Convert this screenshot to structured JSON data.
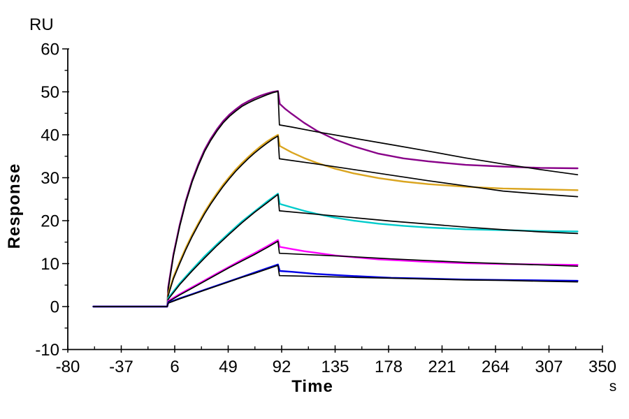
{
  "chart_data": {
    "type": "line",
    "description": "Surface plasmon resonance (SPR) sensorgram: five measured concentration traces with overlaid black kinetic-fit curves. Injection starts at t=0 s, dissociation starts at t=89 s.",
    "ylabel": "Response",
    "yunit_label": "RU",
    "xlabel": "Time",
    "xunit_label": "s",
    "xlim": [
      -80,
      350
    ],
    "ylim": [
      -10,
      60
    ],
    "xticks": [
      -80,
      -37,
      6,
      49,
      92,
      135,
      178,
      221,
      264,
      307,
      350
    ],
    "yticks": [
      60,
      50,
      40,
      30,
      20,
      10,
      0,
      -10
    ],
    "minor_ticks": "midpoints between majors",
    "grid": false,
    "legend": false,
    "axis_color": "#000000",
    "series": [
      {
        "id": "trace1_measured",
        "role": "measured",
        "peak_ru": 50,
        "color": "#880088",
        "points": [
          [
            -59.5,
            0
          ],
          [
            -40,
            0
          ],
          [
            -20,
            0
          ],
          [
            -8,
            0
          ],
          [
            -1,
            0
          ],
          [
            0,
            0
          ],
          [
            0.8,
            4.5
          ],
          [
            5,
            12.2
          ],
          [
            10,
            19
          ],
          [
            15,
            24.7
          ],
          [
            20,
            29.4
          ],
          [
            25,
            33.2
          ],
          [
            30,
            36.5
          ],
          [
            35,
            39.1
          ],
          [
            40,
            41.3
          ],
          [
            45,
            43.2
          ],
          [
            50,
            44.7
          ],
          [
            55,
            45.9
          ],
          [
            60,
            47
          ],
          [
            65,
            47.8
          ],
          [
            70,
            48.5
          ],
          [
            75,
            49.1
          ],
          [
            80,
            49.6
          ],
          [
            85,
            50
          ],
          [
            89,
            50.2
          ],
          [
            90.5,
            47.2
          ],
          [
            95,
            46
          ],
          [
            100,
            44.9
          ],
          [
            110,
            42.8
          ],
          [
            120,
            41
          ],
          [
            135,
            38.9
          ],
          [
            150,
            37.3
          ],
          [
            170,
            35.6
          ],
          [
            190,
            34.5
          ],
          [
            210,
            33.8
          ],
          [
            240,
            33
          ],
          [
            270,
            32.6
          ],
          [
            300,
            32.3
          ],
          [
            330,
            32.2
          ]
        ]
      },
      {
        "id": "trace1_fit",
        "role": "fit",
        "peak_ru": 50,
        "color": "#000000",
        "points": [
          [
            -59.5,
            0
          ],
          [
            -30,
            0
          ],
          [
            -10,
            0
          ],
          [
            -1,
            0
          ],
          [
            0,
            0
          ],
          [
            0.8,
            4
          ],
          [
            5,
            11.8
          ],
          [
            10,
            18.6
          ],
          [
            15,
            24.3
          ],
          [
            20,
            29
          ],
          [
            25,
            32.8
          ],
          [
            30,
            36.1
          ],
          [
            35,
            38.7
          ],
          [
            40,
            40.9
          ],
          [
            45,
            42.8
          ],
          [
            50,
            44.3
          ],
          [
            55,
            45.5
          ],
          [
            60,
            46.6
          ],
          [
            65,
            47.4
          ],
          [
            70,
            48.1
          ],
          [
            75,
            48.7
          ],
          [
            80,
            49.3
          ],
          [
            85,
            49.8
          ],
          [
            89,
            50.1
          ],
          [
            90.2,
            42.3
          ],
          [
            100,
            41.8
          ],
          [
            120,
            40.7
          ],
          [
            150,
            39.2
          ],
          [
            180,
            37.7
          ],
          [
            210,
            36.2
          ],
          [
            240,
            34.6
          ],
          [
            270,
            33.2
          ],
          [
            300,
            31.9
          ],
          [
            330,
            30.7
          ]
        ]
      },
      {
        "id": "trace2_measured",
        "role": "measured",
        "peak_ru": 40,
        "color": "#DAA520",
        "points": [
          [
            -59.5,
            0
          ],
          [
            -30,
            0
          ],
          [
            -10,
            0
          ],
          [
            0,
            0
          ],
          [
            0.8,
            3
          ],
          [
            5,
            6.9
          ],
          [
            10,
            10.4
          ],
          [
            15,
            13.7
          ],
          [
            20,
            16.7
          ],
          [
            25,
            19.4
          ],
          [
            30,
            22
          ],
          [
            35,
            24.3
          ],
          [
            40,
            26.4
          ],
          [
            45,
            28.4
          ],
          [
            50,
            30.2
          ],
          [
            55,
            31.9
          ],
          [
            60,
            33.4
          ],
          [
            65,
            34.8
          ],
          [
            70,
            36.1
          ],
          [
            75,
            37.3
          ],
          [
            80,
            38.4
          ],
          [
            85,
            39.3
          ],
          [
            89,
            40
          ],
          [
            90.5,
            37.4
          ],
          [
            100,
            35.9
          ],
          [
            110,
            34.6
          ],
          [
            120,
            33.5
          ],
          [
            135,
            32.1
          ],
          [
            150,
            31
          ],
          [
            170,
            29.9
          ],
          [
            190,
            29.1
          ],
          [
            210,
            28.5
          ],
          [
            240,
            27.9
          ],
          [
            270,
            27.5
          ],
          [
            300,
            27.3
          ],
          [
            330,
            27.1
          ]
        ]
      },
      {
        "id": "trace2_fit",
        "role": "fit",
        "peak_ru": 40,
        "color": "#000000",
        "points": [
          [
            -59.5,
            0
          ],
          [
            0,
            0
          ],
          [
            0.8,
            2.6
          ],
          [
            5,
            6.5
          ],
          [
            10,
            10
          ],
          [
            15,
            13.3
          ],
          [
            20,
            16.3
          ],
          [
            25,
            19
          ],
          [
            30,
            21.6
          ],
          [
            35,
            23.9
          ],
          [
            40,
            26
          ],
          [
            45,
            28
          ],
          [
            50,
            29.8
          ],
          [
            55,
            31.5
          ],
          [
            60,
            33
          ],
          [
            65,
            34.4
          ],
          [
            70,
            35.7
          ],
          [
            75,
            36.9
          ],
          [
            80,
            38
          ],
          [
            85,
            39
          ],
          [
            89,
            39.7
          ],
          [
            90.2,
            34.4
          ],
          [
            120,
            33.2
          ],
          [
            150,
            31.9
          ],
          [
            180,
            30.6
          ],
          [
            210,
            29.3
          ],
          [
            240,
            28.1
          ],
          [
            270,
            26.9
          ],
          [
            300,
            26.2
          ],
          [
            330,
            25.6
          ]
        ]
      },
      {
        "id": "trace3_measured",
        "role": "measured",
        "peak_ru": 26.3,
        "color": "#00CBCB",
        "points": [
          [
            -59.5,
            0
          ],
          [
            -30,
            0
          ],
          [
            0,
            0
          ],
          [
            0.8,
            2
          ],
          [
            10,
            5.4
          ],
          [
            20,
            8.6
          ],
          [
            30,
            11.7
          ],
          [
            40,
            14.5
          ],
          [
            50,
            17.2
          ],
          [
            60,
            19.8
          ],
          [
            70,
            22.1
          ],
          [
            80,
            24.4
          ],
          [
            89,
            26.3
          ],
          [
            90.5,
            23.9
          ],
          [
            100,
            23.1
          ],
          [
            110,
            22.3
          ],
          [
            120,
            21.6
          ],
          [
            135,
            20.7
          ],
          [
            150,
            20
          ],
          [
            170,
            19.3
          ],
          [
            190,
            18.8
          ],
          [
            210,
            18.4
          ],
          [
            240,
            18
          ],
          [
            270,
            17.8
          ],
          [
            300,
            17.6
          ],
          [
            330,
            17.5
          ]
        ]
      },
      {
        "id": "trace3_fit",
        "role": "fit",
        "peak_ru": 26.1,
        "color": "#000000",
        "points": [
          [
            -59.5,
            0
          ],
          [
            0,
            0
          ],
          [
            0.8,
            1.7
          ],
          [
            10,
            5.1
          ],
          [
            20,
            8.3
          ],
          [
            30,
            11.3
          ],
          [
            40,
            14.2
          ],
          [
            50,
            16.9
          ],
          [
            60,
            19.5
          ],
          [
            70,
            21.9
          ],
          [
            80,
            24.1
          ],
          [
            89,
            26.1
          ],
          [
            90.2,
            22.3
          ],
          [
            120,
            21.5
          ],
          [
            150,
            20.7
          ],
          [
            180,
            19.9
          ],
          [
            210,
            19.2
          ],
          [
            240,
            18.5
          ],
          [
            270,
            17.9
          ],
          [
            300,
            17.4
          ],
          [
            330,
            17
          ]
        ]
      },
      {
        "id": "trace4_measured",
        "role": "measured",
        "peak_ru": 15.5,
        "color": "#FF00FF",
        "points": [
          [
            -59.5,
            0
          ],
          [
            0,
            0
          ],
          [
            0.8,
            1.3
          ],
          [
            10,
            2.9
          ],
          [
            20,
            4.5
          ],
          [
            30,
            6.1
          ],
          [
            40,
            7.7
          ],
          [
            50,
            9.3
          ],
          [
            60,
            10.9
          ],
          [
            70,
            12.4
          ],
          [
            80,
            14
          ],
          [
            89,
            15.5
          ],
          [
            90.5,
            13.9
          ],
          [
            100,
            13.4
          ],
          [
            110,
            12.9
          ],
          [
            120,
            12.5
          ],
          [
            135,
            11.9
          ],
          [
            150,
            11.5
          ],
          [
            170,
            11
          ],
          [
            190,
            10.7
          ],
          [
            210,
            10.4
          ],
          [
            240,
            10.1
          ],
          [
            270,
            9.9
          ],
          [
            300,
            9.8
          ],
          [
            330,
            9.7
          ]
        ]
      },
      {
        "id": "trace4_fit",
        "role": "fit",
        "peak_ru": 15.2,
        "color": "#000000",
        "points": [
          [
            -59.5,
            0
          ],
          [
            0,
            0
          ],
          [
            0.8,
            1.1
          ],
          [
            10,
            2.7
          ],
          [
            20,
            4.3
          ],
          [
            30,
            5.9
          ],
          [
            40,
            7.5
          ],
          [
            50,
            9.1
          ],
          [
            60,
            10.6
          ],
          [
            70,
            12.1
          ],
          [
            80,
            13.7
          ],
          [
            89,
            15.2
          ],
          [
            90.2,
            12.4
          ],
          [
            120,
            12
          ],
          [
            150,
            11.6
          ],
          [
            180,
            11.1
          ],
          [
            210,
            10.7
          ],
          [
            240,
            10.3
          ],
          [
            270,
            10
          ],
          [
            300,
            9.7
          ],
          [
            330,
            9.4
          ]
        ]
      },
      {
        "id": "trace5_measured",
        "role": "measured",
        "peak_ru": 9.8,
        "color": "#0000E6",
        "points": [
          [
            -59.5,
            0
          ],
          [
            0,
            0
          ],
          [
            0.8,
            0.9
          ],
          [
            10,
            1.9
          ],
          [
            20,
            2.9
          ],
          [
            30,
            3.9
          ],
          [
            40,
            4.9
          ],
          [
            50,
            5.9
          ],
          [
            60,
            6.9
          ],
          [
            70,
            7.9
          ],
          [
            80,
            8.9
          ],
          [
            89,
            9.8
          ],
          [
            90.5,
            8.3
          ],
          [
            100,
            8.1
          ],
          [
            120,
            7.6
          ],
          [
            150,
            7.1
          ],
          [
            180,
            6.7
          ],
          [
            210,
            6.5
          ],
          [
            240,
            6.3
          ],
          [
            270,
            6.2
          ],
          [
            300,
            6.1
          ],
          [
            330,
            6
          ]
        ]
      },
      {
        "id": "trace5_fit",
        "role": "fit",
        "peak_ru": 9.6,
        "color": "#000000",
        "points": [
          [
            -59.5,
            0
          ],
          [
            0,
            0
          ],
          [
            0.8,
            0.8
          ],
          [
            10,
            1.8
          ],
          [
            20,
            2.8
          ],
          [
            30,
            3.8
          ],
          [
            40,
            4.8
          ],
          [
            50,
            5.8
          ],
          [
            60,
            6.8
          ],
          [
            70,
            7.7
          ],
          [
            80,
            8.7
          ],
          [
            89,
            9.6
          ],
          [
            90.2,
            7.2
          ],
          [
            120,
            7
          ],
          [
            150,
            6.8
          ],
          [
            180,
            6.6
          ],
          [
            210,
            6.4
          ],
          [
            240,
            6.2
          ],
          [
            270,
            6.1
          ],
          [
            300,
            5.9
          ],
          [
            330,
            5.75
          ]
        ]
      }
    ]
  }
}
